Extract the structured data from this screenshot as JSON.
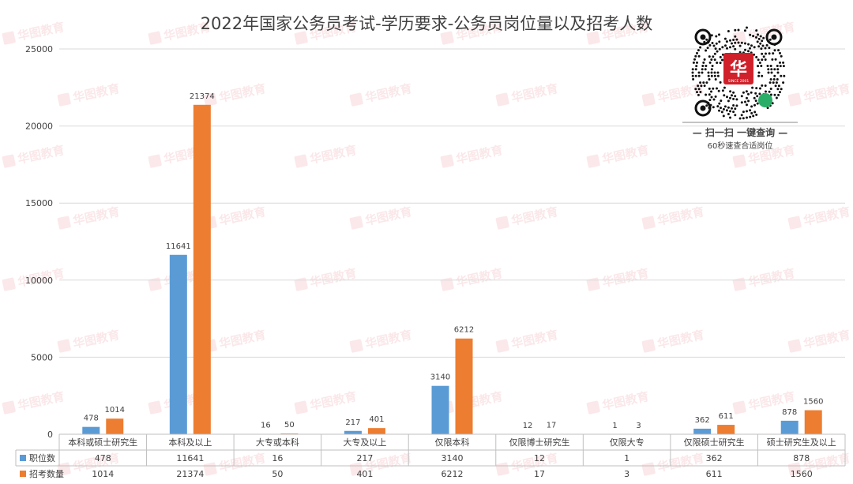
{
  "chart_data": {
    "type": "bar",
    "title": "2022年国家公务员考试-学历要求-公务员岗位量以及招考人数",
    "categories": [
      "本科或硕士研究生",
      "本科及以上",
      "大专或本科",
      "大专及以上",
      "仅限本科",
      "仅限博士研究生",
      "仅限大专",
      "仅限硕士研究生",
      "硕士研究生及以上"
    ],
    "series": [
      {
        "name": "职位数",
        "color": "#5b9bd5",
        "values": [
          478,
          11641,
          16,
          217,
          3140,
          12,
          1,
          362,
          878
        ]
      },
      {
        "name": "招考数量",
        "color": "#ed7d31",
        "values": [
          1014,
          21374,
          50,
          401,
          6212,
          17,
          3,
          611,
          1560
        ]
      }
    ],
    "ylim": [
      0,
      25000
    ],
    "yticks": [
      0,
      5000,
      10000,
      15000,
      20000,
      25000
    ],
    "grid": true,
    "legend": "data-table",
    "xlabel": "",
    "ylabel": ""
  },
  "qr": {
    "caption": "— 扫一扫 一键查询 —",
    "subcaption": "60秒速查合适岗位",
    "logo_text": "华",
    "logo_small": "SINCE 2001"
  },
  "watermark": {
    "text": "华图教育",
    "color": "#e05060"
  }
}
